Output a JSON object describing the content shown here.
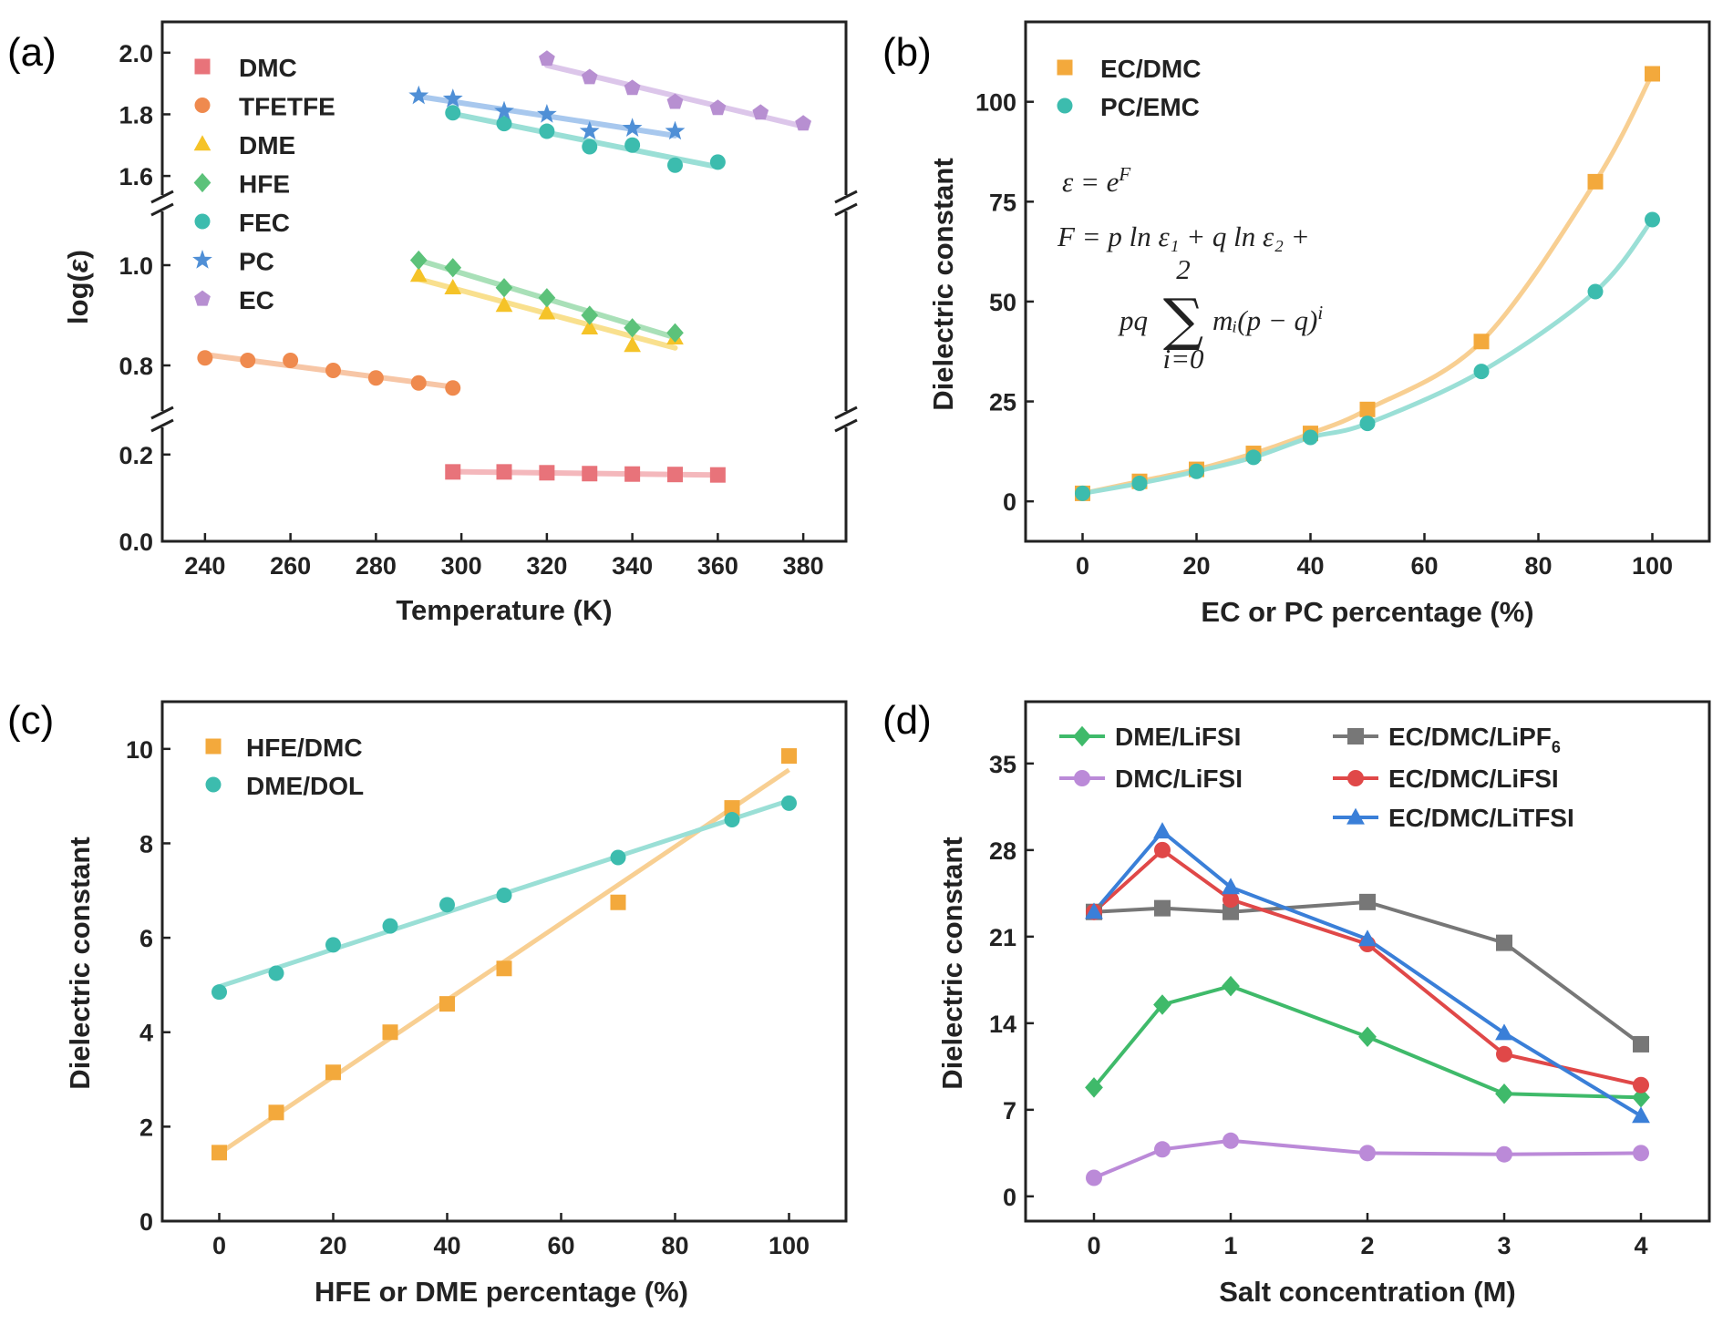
{
  "panels": [
    {
      "id": "a",
      "label": "(a)",
      "chart_data": {
        "type": "scatter",
        "title": "",
        "xlabel": "Temperature (K)",
        "ylabel": "log(ε)",
        "xlim": [
          230,
          390
        ],
        "xticks": [
          "240",
          "260",
          "280",
          "300",
          "320",
          "340",
          "360",
          "380"
        ],
        "xtick_values": [
          240,
          260,
          280,
          300,
          320,
          340,
          360,
          380
        ],
        "broken_y_axis": true,
        "y_segments": [
          {
            "range": [
              0.0,
              0.25
            ],
            "ticks": [
              "0.0",
              "0.2"
            ],
            "tick_values": [
              0.0,
              0.2
            ]
          },
          {
            "range": [
              0.72,
              1.1
            ],
            "ticks": [
              "0.8",
              "1.0"
            ],
            "tick_values": [
              0.8,
              1.0
            ]
          },
          {
            "range": [
              1.55,
              2.1
            ],
            "ticks": [
              "1.6",
              "1.8",
              "2.0"
            ],
            "tick_values": [
              1.6,
              1.8,
              2.0
            ]
          }
        ],
        "legend_position": "top-left",
        "fit_lines": "linear",
        "series": [
          {
            "name": "DMC",
            "marker": "square",
            "color": "#e8737a",
            "fit_color": "#f4b8bc",
            "x": [
              298,
              310,
              320,
              330,
              340,
              350,
              360
            ],
            "y": [
              0.16,
              0.16,
              0.158,
              0.156,
              0.155,
              0.154,
              0.153
            ]
          },
          {
            "name": "TFETFE",
            "marker": "circle",
            "color": "#ef8a4e",
            "fit_color": "#f7c6a6",
            "x": [
              240,
              250,
              260,
              270,
              280,
              290,
              298
            ],
            "y": [
              0.815,
              0.81,
              0.81,
              0.79,
              0.775,
              0.765,
              0.755
            ]
          },
          {
            "name": "DME",
            "marker": "triangle",
            "color": "#f5c328",
            "fit_color": "#f9e08e",
            "x": [
              290,
              298,
              310,
              320,
              330,
              340,
              350
            ],
            "y": [
              0.98,
              0.955,
              0.92,
              0.905,
              0.875,
              0.84,
              0.855
            ]
          },
          {
            "name": "HFE",
            "marker": "diamond",
            "color": "#5cc27a",
            "fit_color": "#a9e0b8",
            "x": [
              290,
              298,
              310,
              320,
              330,
              340,
              350
            ],
            "y": [
              1.01,
              0.995,
              0.955,
              0.935,
              0.9,
              0.875,
              0.865
            ]
          },
          {
            "name": "FEC",
            "marker": "circle",
            "color": "#3cbcae",
            "fit_color": "#9adfd6",
            "x": [
              298,
              310,
              320,
              330,
              340,
              350,
              360
            ],
            "y": [
              1.805,
              1.77,
              1.745,
              1.695,
              1.7,
              1.635,
              1.645
            ]
          },
          {
            "name": "PC",
            "marker": "star",
            "color": "#4f8fd6",
            "fit_color": "#a8c8ee",
            "x": [
              290,
              298,
              310,
              320,
              330,
              340,
              350
            ],
            "y": [
              1.86,
              1.85,
              1.81,
              1.8,
              1.745,
              1.755,
              1.745
            ]
          },
          {
            "name": "EC",
            "marker": "pentagon",
            "color": "#b78fd1",
            "fit_color": "#dcc6ea",
            "x": [
              320,
              330,
              340,
              350,
              360,
              370,
              380
            ],
            "y": [
              1.98,
              1.92,
              1.885,
              1.84,
              1.82,
              1.805,
              1.77
            ]
          }
        ]
      }
    },
    {
      "id": "b",
      "label": "(b)",
      "chart_data": {
        "type": "scatter",
        "title": "",
        "xlabel": "EC or PC percentage (%)",
        "ylabel": "Dielectric constant",
        "xlim": [
          -10,
          110
        ],
        "ylim": [
          -10,
          120
        ],
        "xticks": [
          "0",
          "20",
          "40",
          "60",
          "80",
          "100"
        ],
        "xtick_values": [
          0,
          20,
          40,
          60,
          80,
          100
        ],
        "yticks": [
          "0",
          "25",
          "50",
          "75",
          "100"
        ],
        "ytick_values": [
          0,
          25,
          50,
          75,
          100
        ],
        "legend_position": "top-left",
        "fit_lines": "smooth curve",
        "series": [
          {
            "name": "EC/DMC",
            "marker": "square",
            "color": "#f3a93c",
            "fit_color": "#f8cf92",
            "x": [
              0,
              10,
              20,
              30,
              40,
              50,
              70,
              90,
              100
            ],
            "y": [
              2,
              5,
              8,
              12,
              17,
              23,
              40,
              80,
              107
            ]
          },
          {
            "name": "PC/EMC",
            "marker": "circle",
            "color": "#3cbcae",
            "fit_color": "#9adfd6",
            "x": [
              0,
              10,
              20,
              30,
              40,
              50,
              70,
              90,
              100
            ],
            "y": [
              2,
              4.5,
              7.5,
              11,
              16,
              19.5,
              32.5,
              52.5,
              70.5
            ]
          }
        ],
        "equation": {
          "line1": "ε = e",
          "line1_sup": "F",
          "line2": "F = p ln ε₁ + q ln ε₂ +",
          "line3_pre": "pq",
          "sum_top": "2",
          "sum_symbol": "∑",
          "sum_bottom": "i=0",
          "line3_post": "mᵢ(p − q)",
          "line3_sup": "i"
        }
      }
    },
    {
      "id": "c",
      "label": "(c)",
      "chart_data": {
        "type": "scatter",
        "title": "",
        "xlabel": "HFE or DME percentage (%)",
        "ylabel": "Dielectric constant",
        "xlim": [
          -10,
          110
        ],
        "ylim": [
          0,
          11
        ],
        "xticks": [
          "0",
          "20",
          "40",
          "60",
          "80",
          "100"
        ],
        "xtick_values": [
          0,
          20,
          40,
          60,
          80,
          100
        ],
        "yticks": [
          "0",
          "2",
          "4",
          "6",
          "8",
          "10"
        ],
        "ytick_values": [
          0,
          2,
          4,
          6,
          8,
          10
        ],
        "legend_position": "top-left",
        "fit_lines": "linear",
        "series": [
          {
            "name": "HFE/DMC",
            "marker": "square",
            "color": "#f3a93c",
            "fit_color": "#f8cf92",
            "x": [
              0,
              10,
              20,
              30,
              40,
              50,
              70,
              90,
              100
            ],
            "y": [
              1.45,
              2.3,
              3.15,
              4.0,
              4.6,
              5.35,
              6.75,
              8.75,
              9.85
            ]
          },
          {
            "name": "DME/DOL",
            "marker": "circle",
            "color": "#3cbcae",
            "fit_color": "#9adfd6",
            "x": [
              0,
              10,
              20,
              30,
              40,
              50,
              70,
              90,
              100
            ],
            "y": [
              4.85,
              5.25,
              5.85,
              6.25,
              6.7,
              6.9,
              7.7,
              8.5,
              8.85
            ]
          }
        ]
      }
    },
    {
      "id": "d",
      "label": "(d)",
      "chart_data": {
        "type": "line",
        "title": "",
        "xlabel": "Salt concentration (M)",
        "ylabel": "Dielectric constant",
        "xlim": [
          -0.5,
          4.5
        ],
        "ylim": [
          -2,
          40
        ],
        "xticks": [
          "0",
          "1",
          "2",
          "3",
          "4"
        ],
        "xtick_values": [
          0,
          1,
          2,
          3,
          4
        ],
        "yticks": [
          "0",
          "7",
          "14",
          "21",
          "28",
          "35"
        ],
        "ytick_values": [
          0,
          7,
          14,
          21,
          28,
          35
        ],
        "legend_position": "top",
        "series": [
          {
            "name": "DME/LiFSI",
            "marker": "diamond",
            "color": "#3fba6a",
            "x": [
              0,
              0.5,
              1,
              2,
              3,
              4
            ],
            "y": [
              8.8,
              15.5,
              17,
              12.9,
              8.3,
              8
            ]
          },
          {
            "name": "DMC/LiFSI",
            "marker": "circle",
            "color": "#bb8ad8",
            "x": [
              0,
              0.5,
              1,
              2,
              3,
              4
            ],
            "y": [
              1.5,
              3.8,
              4.5,
              3.5,
              3.4,
              3.5
            ]
          },
          {
            "name": "EC/DMC/LiPF",
            "name_sub": "6",
            "marker": "square",
            "color": "#777777",
            "x": [
              0,
              0.5,
              1,
              2,
              3,
              4
            ],
            "y": [
              23,
              23.3,
              23,
              23.8,
              20.5,
              12.3
            ]
          },
          {
            "name": "EC/DMC/LiFSI",
            "marker": "circle",
            "color": "#e04848",
            "x": [
              0,
              0.5,
              1,
              2,
              3,
              4
            ],
            "y": [
              23,
              28,
              24,
              20.4,
              11.5,
              9
            ]
          },
          {
            "name": "EC/DMC/LiTFSI",
            "marker": "triangle",
            "color": "#3a7fd8",
            "x": [
              0,
              0.5,
              1,
              2,
              3,
              4
            ],
            "y": [
              23,
              29.5,
              25,
              20.8,
              13.2,
              6.5
            ]
          }
        ]
      }
    }
  ]
}
